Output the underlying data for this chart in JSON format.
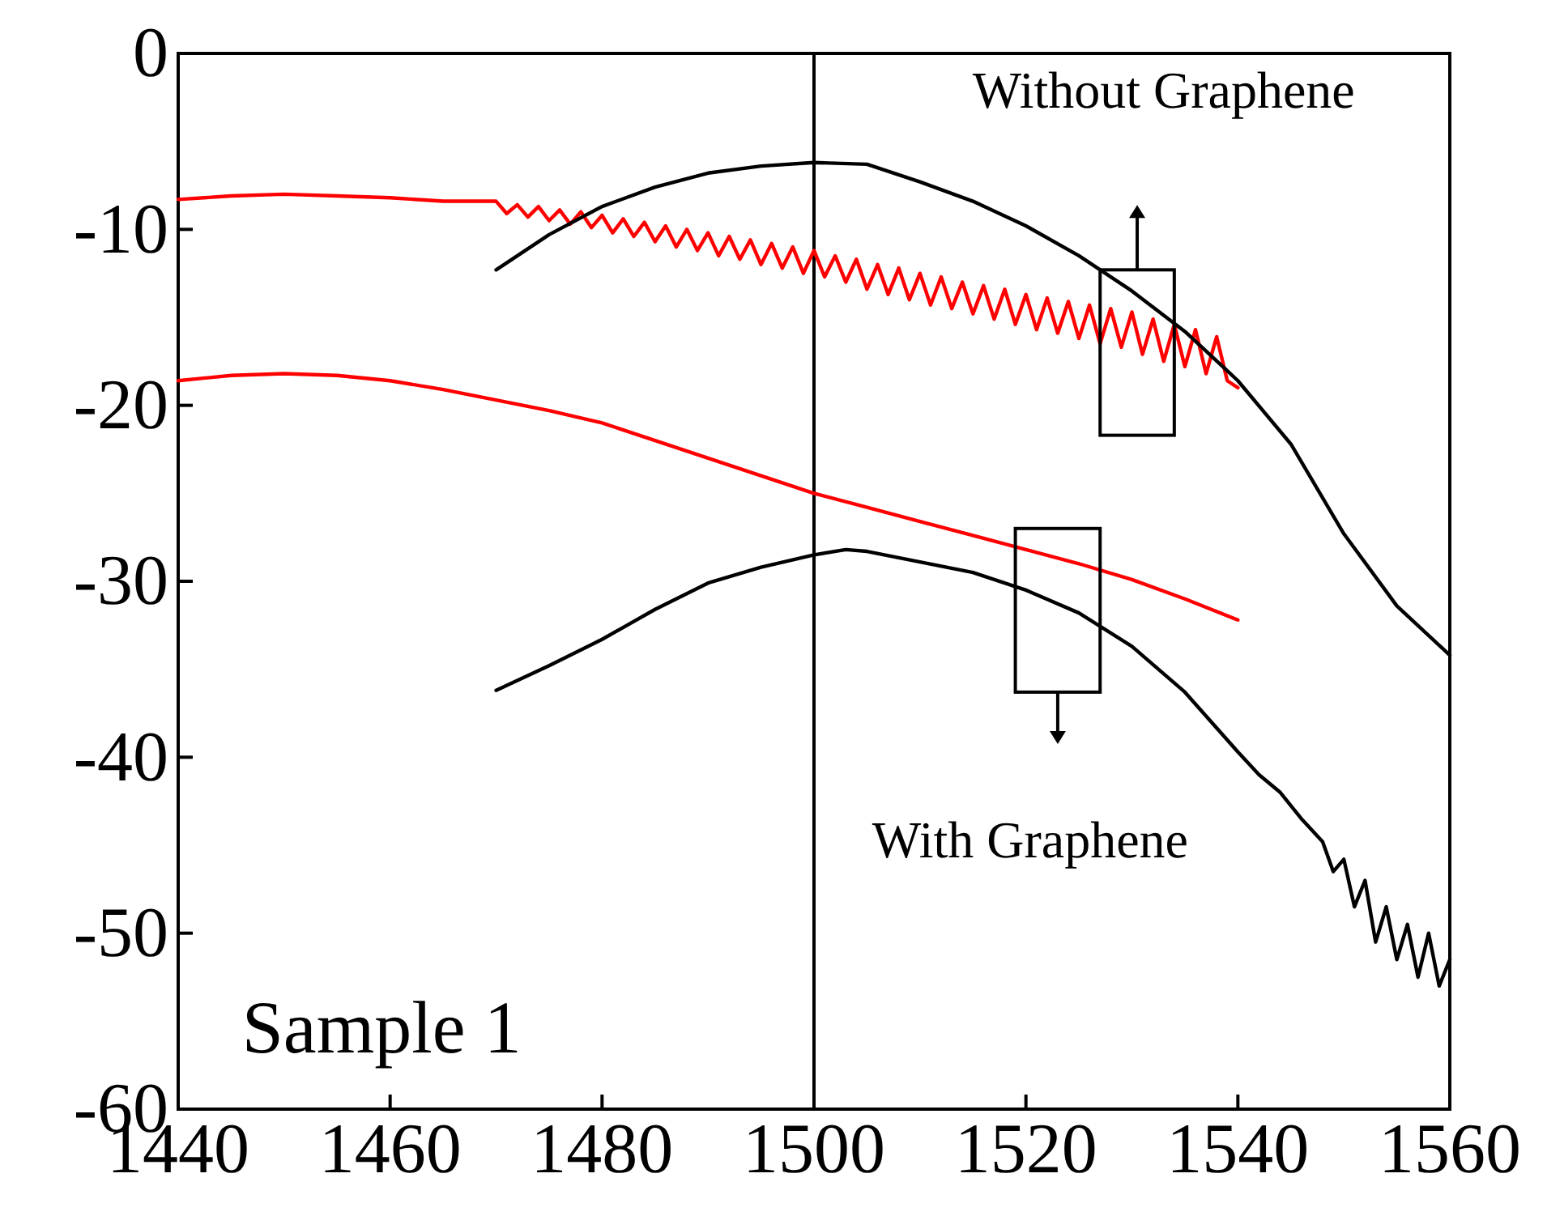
{
  "chart_data": {
    "type": "line",
    "xlim": [
      1440,
      1560
    ],
    "xticks": [
      1440,
      1460,
      1480,
      1500,
      1520,
      1540,
      1560
    ],
    "ylim": [
      -60,
      0
    ],
    "yticks": [
      -60,
      -50,
      -40,
      -30,
      -20,
      -10,
      0
    ],
    "grid": false,
    "marker": "none",
    "line_style": "solid",
    "ref_lines": [
      {
        "axis": "x",
        "value": 1500,
        "color": "#000000"
      }
    ],
    "annotations": [
      "Without Graphene",
      "With Graphene",
      "Sample 1"
    ],
    "series": [
      {
        "color": "#ff0000",
        "x": [
          1440,
          1445,
          1450,
          1455,
          1460,
          1465,
          1470,
          1471,
          1472,
          1473,
          1474,
          1475,
          1476,
          1477,
          1478,
          1479,
          1480,
          1481,
          1482,
          1483,
          1484,
          1485,
          1486,
          1487,
          1488,
          1489,
          1490,
          1491,
          1492,
          1493,
          1494,
          1495,
          1496,
          1497,
          1498,
          1499,
          1500,
          1501,
          1502,
          1503,
          1504,
          1505,
          1506,
          1507,
          1508,
          1509,
          1510,
          1511,
          1512,
          1513,
          1514,
          1515,
          1516,
          1517,
          1518,
          1519,
          1520,
          1521,
          1522,
          1523,
          1524,
          1525,
          1526,
          1527,
          1528,
          1529,
          1530,
          1531,
          1532,
          1533,
          1534,
          1535,
          1536,
          1537,
          1538,
          1539,
          1540
        ],
        "values": [
          -8.3,
          -8.1,
          -8.0,
          -8.1,
          -8.2,
          -8.4,
          -8.4,
          -9.1,
          -8.6,
          -9.3,
          -8.7,
          -9.5,
          -8.9,
          -9.7,
          -9.0,
          -9.9,
          -9.2,
          -10.2,
          -9.4,
          -10.4,
          -9.6,
          -10.7,
          -9.8,
          -11.0,
          -10.0,
          -11.2,
          -10.2,
          -11.5,
          -10.4,
          -11.7,
          -10.6,
          -12.0,
          -10.8,
          -12.2,
          -11.0,
          -12.5,
          -11.2,
          -12.7,
          -11.5,
          -13.0,
          -11.7,
          -13.4,
          -12.0,
          -13.7,
          -12.2,
          -14.0,
          -12.5,
          -14.3,
          -12.7,
          -14.5,
          -13.0,
          -14.8,
          -13.2,
          -15.1,
          -13.4,
          -15.4,
          -13.7,
          -15.7,
          -13.9,
          -15.9,
          -14.1,
          -16.2,
          -14.3,
          -16.5,
          -14.5,
          -16.7,
          -14.7,
          -17.1,
          -15.1,
          -17.5,
          -15.4,
          -17.8,
          -15.7,
          -18.2,
          -16.1,
          -18.6,
          -19.0
        ]
      },
      {
        "color": "#ff0000",
        "x": [
          1440,
          1445,
          1450,
          1455,
          1460,
          1465,
          1470,
          1475,
          1480,
          1485,
          1490,
          1495,
          1500,
          1505,
          1510,
          1515,
          1520,
          1525,
          1530,
          1535,
          1540
        ],
        "values": [
          -18.6,
          -18.3,
          -18.2,
          -18.3,
          -18.6,
          -19.1,
          -19.7,
          -20.3,
          -21.0,
          -22.0,
          -23.0,
          -24.0,
          -25.0,
          -25.8,
          -26.6,
          -27.4,
          -28.2,
          -29.0,
          -29.9,
          -31.0,
          -32.2
        ]
      },
      {
        "color": "#000000",
        "x": [
          1470,
          1475,
          1480,
          1485,
          1490,
          1495,
          1500,
          1505,
          1510,
          1515,
          1520,
          1525,
          1530,
          1535,
          1540,
          1545,
          1550,
          1555,
          1560
        ],
        "values": [
          -12.3,
          -10.3,
          -8.7,
          -7.6,
          -6.8,
          -6.4,
          -6.2,
          -6.3,
          -7.3,
          -8.4,
          -9.8,
          -11.5,
          -13.5,
          -15.8,
          -18.6,
          -22.2,
          -27.3,
          -31.4,
          -34.2
        ]
      },
      {
        "color": "#000000",
        "x": [
          1470,
          1475,
          1480,
          1485,
          1490,
          1495,
          1500,
          1503,
          1505,
          1510,
          1515,
          1520,
          1525,
          1530,
          1535,
          1540,
          1542,
          1544,
          1546,
          1548,
          1549,
          1550,
          1551,
          1552,
          1553,
          1554,
          1555,
          1556,
          1557,
          1558,
          1559,
          1560
        ],
        "values": [
          -36.2,
          -34.8,
          -33.3,
          -31.6,
          -30.1,
          -29.2,
          -28.5,
          -28.2,
          -28.3,
          -28.9,
          -29.5,
          -30.5,
          -31.8,
          -33.7,
          -36.3,
          -39.7,
          -41.0,
          -42.0,
          -43.5,
          -44.8,
          -46.5,
          -45.8,
          -48.5,
          -47.0,
          -50.5,
          -48.5,
          -51.5,
          -49.5,
          -52.5,
          -50.0,
          -53.0,
          -51.5
        ]
      }
    ]
  }
}
